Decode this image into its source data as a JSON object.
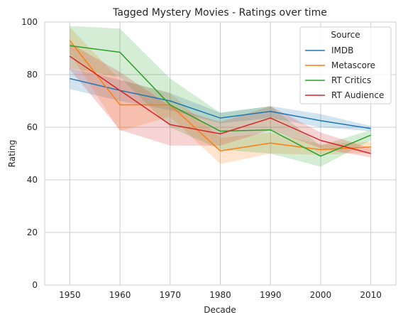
{
  "chart_data": {
    "type": "line",
    "title": "Tagged Mystery Movies - Ratings over time",
    "xlabel": "Decade",
    "ylabel": "Rating",
    "x": [
      1950,
      1960,
      1970,
      1980,
      1990,
      2000,
      2010
    ],
    "xlim": [
      1945,
      2015
    ],
    "ylim": [
      0,
      100
    ],
    "yticks": [
      0,
      20,
      40,
      60,
      80,
      100
    ],
    "grid": true,
    "legend": {
      "title": "Source",
      "placement": "top-right"
    },
    "series": [
      {
        "name": "IMDB",
        "color": "#1f77b4",
        "values": [
          78.5,
          74,
          70,
          63.5,
          66,
          62.5,
          59.5
        ],
        "lower": [
          74.5,
          70,
          66.5,
          61.5,
          63.5,
          60,
          58.5
        ],
        "upper": [
          82.5,
          78,
          73,
          65.5,
          68,
          65,
          60.5
        ]
      },
      {
        "name": "Metascore",
        "color": "#ff7f0e",
        "values": [
          93,
          68.5,
          68.5,
          51,
          54,
          51.5,
          52.5
        ],
        "lower": [
          88,
          58.5,
          64,
          46,
          50,
          49.5,
          50.5
        ],
        "upper": [
          98,
          78,
          73,
          56,
          58,
          53.5,
          54.5
        ]
      },
      {
        "name": "RT Critics",
        "color": "#2ca02c",
        "values": [
          91,
          88.5,
          68.5,
          58.5,
          59,
          49,
          57
        ],
        "lower": [
          82.5,
          79,
          60,
          51.5,
          50,
          45,
          55
        ],
        "upper": [
          98.5,
          97.5,
          78.5,
          65.5,
          68,
          53,
          59
        ]
      },
      {
        "name": "RT Audience",
        "color": "#d62728",
        "values": [
          87,
          74,
          61,
          57.5,
          63.5,
          55,
          50
        ],
        "lower": [
          82,
          59,
          53,
          53,
          59,
          52,
          48.5
        ],
        "upper": [
          92,
          81,
          68,
          62,
          68,
          58,
          52
        ]
      }
    ]
  }
}
